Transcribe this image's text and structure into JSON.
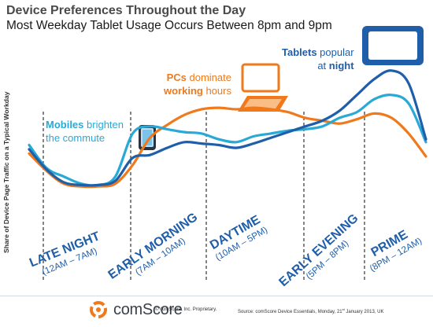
{
  "title": "Device Preferences Throughout the Day",
  "subtitle": "Most Weekday Tablet Usage Occurs Between 8pm and 9pm",
  "annotations": {
    "mobiles": {
      "pre": "Mobiles",
      "mid": " brighten",
      "line2": "the commute",
      "color": "#29a9d6"
    },
    "pcs": {
      "pre": "PCs",
      "mid": " dominate",
      "line2a": "working",
      "line2b": " hours",
      "color": "#f07a1b"
    },
    "tablets": {
      "pre": "Tablets",
      "mid": " popular",
      "line2a": "at ",
      "line2b": "night",
      "color": "#1f5ea8"
    }
  },
  "footer": {
    "brand": "comScore",
    "copyright": "© comScore, Inc.   Proprietary.",
    "source_pre": "Source:  comScore Device Essentials, Monday, 21",
    "source_sup": "st",
    "source_post": " January 2013, UK"
  },
  "chart_data": {
    "type": "line",
    "title": "Device Preferences Throughout the Day",
    "subtitle": "Most Weekday Tablet Usage Occurs Between 8pm and 9pm",
    "ylabel": "Share of Device Page Traffic on a Typical Workday",
    "xlabel": "",
    "x": [
      0,
      1,
      2,
      3,
      4,
      5,
      6,
      7,
      8,
      9,
      10,
      11,
      12,
      13,
      14,
      15,
      16,
      17,
      18,
      19,
      20,
      21,
      22,
      23
    ],
    "ylim": [
      0,
      100
    ],
    "grid": false,
    "legend": "none",
    "series": [
      {
        "name": "PCs",
        "color": "#f07a1b",
        "values": [
          41,
          29,
          20,
          18,
          18,
          20,
          33,
          52,
          61,
          68,
          72,
          73,
          72,
          73,
          72,
          70,
          66,
          64,
          62,
          65,
          69,
          66,
          55,
          39
        ]
      },
      {
        "name": "Mobiles",
        "color": "#29a9d6",
        "values": [
          47,
          31,
          25,
          20,
          19,
          25,
          55,
          60,
          58,
          56,
          55,
          51,
          49,
          53,
          55,
          57,
          58,
          60,
          66,
          70,
          79,
          82,
          76,
          49
        ]
      },
      {
        "name": "Tablets",
        "color": "#1f5ea8",
        "values": [
          44,
          30,
          21,
          19,
          19,
          22,
          38,
          40,
          45,
          49,
          48,
          47,
          45,
          48,
          52,
          56,
          60,
          64,
          71,
          82,
          93,
          99,
          90,
          51
        ]
      }
    ],
    "periods": [
      {
        "name": "LATE NIGHT",
        "range": "(12AM – 7AM)"
      },
      {
        "name": "EARLY MORNING",
        "range": "(7AM – 10AM)"
      },
      {
        "name": "DAYTIME",
        "range": "(10AM – 5PM)"
      },
      {
        "name": "EARLY EVENING",
        "range": "(5PM – 8PM)"
      },
      {
        "name": "PRIME",
        "range": "(8PM – 12AM)"
      }
    ]
  }
}
